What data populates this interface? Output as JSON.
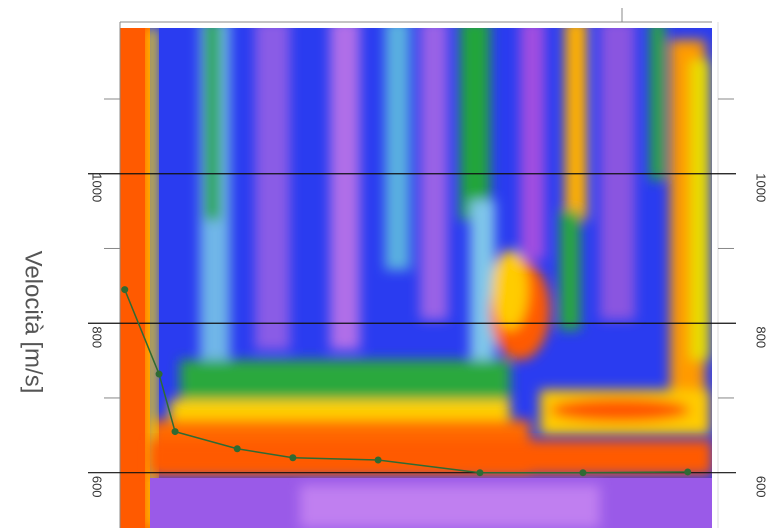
{
  "chart_data": {
    "type": "line",
    "y_label": "Velocità [m/s]",
    "x": [
      0.8,
      6.6,
      9.3,
      19.8,
      29.2,
      43.6,
      60.8,
      78.2,
      95.9
    ],
    "values": [
      845,
      732,
      655,
      632,
      620,
      617,
      600,
      600,
      601
    ],
    "color": "#2f6a33",
    "xlim": [
      0,
      100
    ],
    "ylim": [
      526,
      1195
    ],
    "yticks": [
      600,
      800,
      1000
    ],
    "minor_yticks": [
      700,
      900,
      1100
    ],
    "grid": true
  }
}
